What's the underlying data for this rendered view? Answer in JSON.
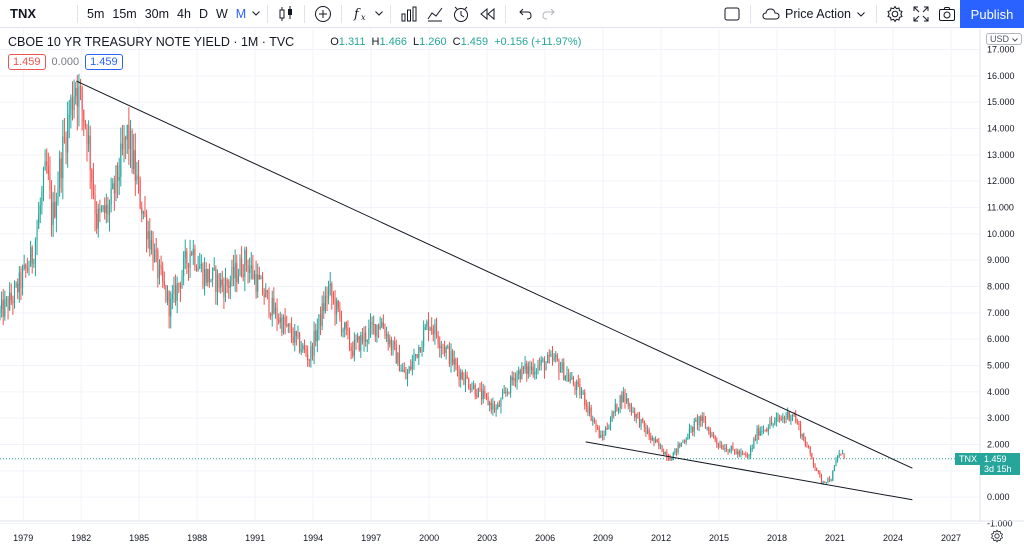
{
  "toolbar": {
    "symbol": "TNX",
    "intervals": [
      "5m",
      "15m",
      "30m",
      "4h",
      "D",
      "W",
      "M"
    ],
    "active_interval": "M",
    "layout_name": "Price Action",
    "publish_label": "Publish"
  },
  "legend": {
    "title": "CBOE 10 YR TREASURY NOTE YIELD · 1M · TVC",
    "open_label": "O",
    "open": "1.311",
    "high_label": "H",
    "high": "1.466",
    "low_label": "L",
    "low": "1.260",
    "close_label": "C",
    "close": "1.459",
    "change": "+0.156 (+11.97%)",
    "sell_box": "1.459",
    "spread": "0.000",
    "buy_box": "1.459"
  },
  "price_axis": {
    "currency": "USD",
    "ticks": [
      "17.000",
      "16.000",
      "15.000",
      "14.000",
      "13.000",
      "12.000",
      "11.000",
      "10.000",
      "9.000",
      "8.000",
      "7.000",
      "6.000",
      "5.000",
      "4.000",
      "3.000",
      "2.000",
      "1.000",
      "0.000",
      "-1.000"
    ],
    "last_label": "TNX",
    "last_price": "1.459",
    "countdown": "3d 15h"
  },
  "time_axis": {
    "ticks": [
      "1979",
      "1982",
      "1985",
      "1988",
      "1991",
      "1994",
      "1997",
      "2000",
      "2003",
      "2006",
      "2009",
      "2012",
      "2015",
      "2018",
      "2021",
      "2024",
      "2027"
    ]
  },
  "colors": {
    "up": "#26a69a",
    "down": "#ef5350",
    "accent": "#2962ff",
    "trendline": "#131722"
  },
  "chart_data": {
    "type": "candlestick",
    "title": "CBOE 10 YR TREASURY NOTE YIELD",
    "interval": "1M",
    "ylim": [
      -1,
      17
    ],
    "x_range": [
      1977.8,
      2028.5
    ],
    "keypoints": [
      [
        1977.8,
        7.0
      ],
      [
        1978.5,
        7.6
      ],
      [
        1979.5,
        9.2
      ],
      [
        1980.2,
        12.5
      ],
      [
        1980.5,
        10.5
      ],
      [
        1981.0,
        13.0
      ],
      [
        1981.7,
        15.8
      ],
      [
        1982.3,
        14.0
      ],
      [
        1982.8,
        10.5
      ],
      [
        1983.5,
        11.0
      ],
      [
        1984.4,
        13.8
      ],
      [
        1985.0,
        11.5
      ],
      [
        1986.0,
        8.5
      ],
      [
        1986.6,
        7.2
      ],
      [
        1987.7,
        9.5
      ],
      [
        1988.3,
        8.5
      ],
      [
        1989.5,
        8.0
      ],
      [
        1990.5,
        9.0
      ],
      [
        1992.0,
        7.0
      ],
      [
        1993.8,
        5.3
      ],
      [
        1994.8,
        7.9
      ],
      [
        1996.0,
        5.6
      ],
      [
        1997.5,
        6.7
      ],
      [
        1998.8,
        4.5
      ],
      [
        2000.0,
        6.7
      ],
      [
        2001.5,
        4.8
      ],
      [
        2002.5,
        4.0
      ],
      [
        2003.5,
        3.3
      ],
      [
        2004.5,
        4.7
      ],
      [
        2006.5,
        5.2
      ],
      [
        2008.0,
        3.8
      ],
      [
        2008.9,
        2.2
      ],
      [
        2010.0,
        3.9
      ],
      [
        2011.5,
        2.2
      ],
      [
        2012.5,
        1.5
      ],
      [
        2014.0,
        3.0
      ],
      [
        2015.0,
        2.0
      ],
      [
        2016.5,
        1.5
      ],
      [
        2017.0,
        2.5
      ],
      [
        2018.8,
        3.2
      ],
      [
        2019.5,
        2.0
      ],
      [
        2020.3,
        0.6
      ],
      [
        2020.8,
        0.7
      ],
      [
        2021.2,
        1.7
      ],
      [
        2021.5,
        1.459
      ]
    ],
    "trendlines": [
      {
        "from": [
          1981.75,
          15.8
        ],
        "to": [
          2025.0,
          1.1
        ]
      },
      {
        "from": [
          2008.1,
          2.1
        ],
        "to": [
          2025.0,
          -0.1
        ]
      }
    ],
    "last_price": 1.459,
    "grid": true
  }
}
